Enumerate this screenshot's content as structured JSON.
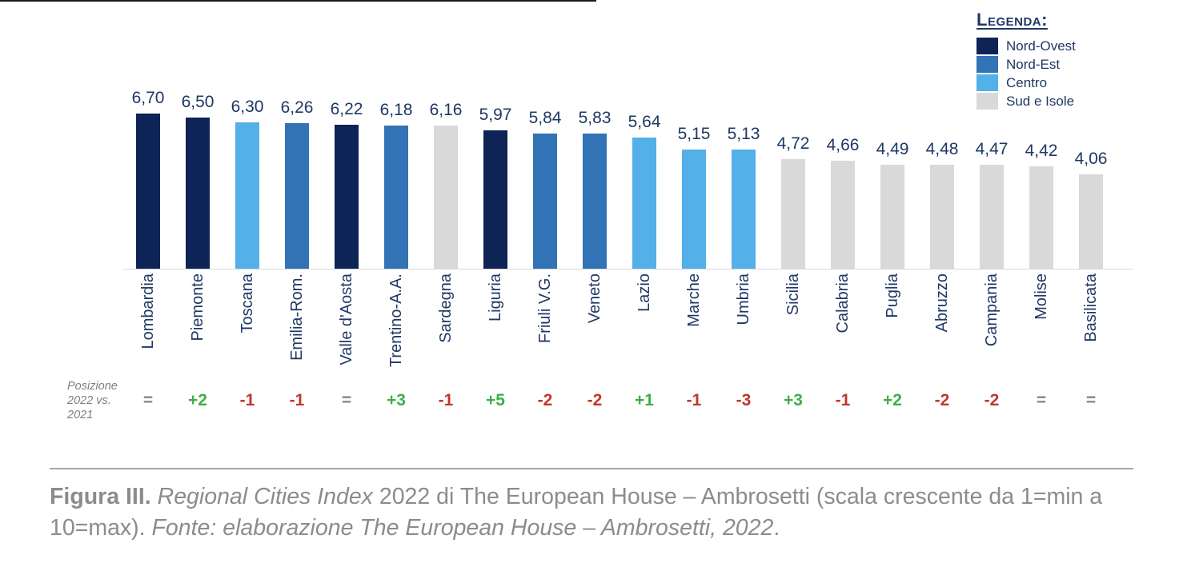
{
  "legend": {
    "title": "Legenda:",
    "items": [
      {
        "label": "Nord-Ovest",
        "color": "#0e2356"
      },
      {
        "label": "Nord-Est",
        "color": "#3273b5"
      },
      {
        "label": "Centro",
        "color": "#53b0e8"
      },
      {
        "label": "Sud e Isole",
        "color": "#d9d9d9"
      }
    ]
  },
  "chart_data": {
    "type": "bar",
    "title": "Regional Cities Index 2022",
    "scale_note": "scala crescente da 1=min a 10=max",
    "ylim": [
      0,
      10
    ],
    "grid": false,
    "legend_position": "top-right",
    "categories": [
      "Lombardia",
      "Piemonte",
      "Toscana",
      "Emilia-Rom.",
      "Valle d'Aosta",
      "Trentino-A.A.",
      "Sardegna",
      "Liguria",
      "Friuli V.G.",
      "Veneto",
      "Lazio",
      "Marche",
      "Umbria",
      "Sicilia",
      "Calabria",
      "Puglia",
      "Abruzzo",
      "Campania",
      "Molise",
      "Basilicata"
    ],
    "values": [
      6.7,
      6.5,
      6.3,
      6.26,
      6.22,
      6.18,
      6.16,
      5.97,
      5.84,
      5.83,
      5.64,
      5.15,
      5.13,
      4.72,
      4.66,
      4.49,
      4.48,
      4.47,
      4.42,
      4.06
    ],
    "value_labels": [
      "6,70",
      "6,50",
      "6,30",
      "6,26",
      "6,22",
      "6,18",
      "6,16",
      "5,97",
      "5,84",
      "5,83",
      "5,64",
      "5,15",
      "5,13",
      "4,72",
      "4,66",
      "4,49",
      "4,48",
      "4,47",
      "4,42",
      "4,06"
    ],
    "groups": [
      "Nord-Ovest",
      "Nord-Ovest",
      "Centro",
      "Nord-Est",
      "Nord-Ovest",
      "Nord-Est",
      "Sud e Isole",
      "Nord-Ovest",
      "Nord-Est",
      "Nord-Est",
      "Centro",
      "Centro",
      "Centro",
      "Sud e Isole",
      "Sud e Isole",
      "Sud e Isole",
      "Sud e Isole",
      "Sud e Isole",
      "Sud e Isole",
      "Sud e Isole"
    ],
    "group_colors": {
      "Nord-Ovest": "#0e2356",
      "Nord-Est": "#3273b5",
      "Centro": "#53b0e8",
      "Sud e Isole": "#d9d9d9"
    },
    "position_changes": [
      {
        "text": "=",
        "dir": "same"
      },
      {
        "text": "+2",
        "dir": "up"
      },
      {
        "text": "-1",
        "dir": "down"
      },
      {
        "text": "-1",
        "dir": "down"
      },
      {
        "text": "=",
        "dir": "same"
      },
      {
        "text": "+3",
        "dir": "up"
      },
      {
        "text": "-1",
        "dir": "down"
      },
      {
        "text": "+5",
        "dir": "up"
      },
      {
        "text": "-2",
        "dir": "down"
      },
      {
        "text": "-2",
        "dir": "down"
      },
      {
        "text": "+1",
        "dir": "up"
      },
      {
        "text": "-1",
        "dir": "down"
      },
      {
        "text": "-3",
        "dir": "down"
      },
      {
        "text": "+3",
        "dir": "up"
      },
      {
        "text": "-1",
        "dir": "down"
      },
      {
        "text": "+2",
        "dir": "up"
      },
      {
        "text": "-2",
        "dir": "down"
      },
      {
        "text": "-2",
        "dir": "down"
      },
      {
        "text": "=",
        "dir": "same"
      },
      {
        "text": "=",
        "dir": "same"
      }
    ],
    "position_change_colors": {
      "up": "#3fae49",
      "down": "#c0372a",
      "same": "#848484"
    }
  },
  "position_row": {
    "label_lines": [
      "Posizione",
      "2022 vs.",
      "2021"
    ]
  },
  "figure": {
    "caption_segments": [
      {
        "text": "Figura III. ",
        "style": "bold"
      },
      {
        "text": "Regional Cities Index",
        "style": "italic"
      },
      {
        "text": " 2022 di The European House – Ambrosetti (scala crescente da 1=min a 10=max). ",
        "style": "normal"
      },
      {
        "text": "Fonte: elaborazione The European House – Ambrosetti, 2022",
        "style": "italic"
      },
      {
        "text": ".",
        "style": "normal"
      }
    ]
  }
}
